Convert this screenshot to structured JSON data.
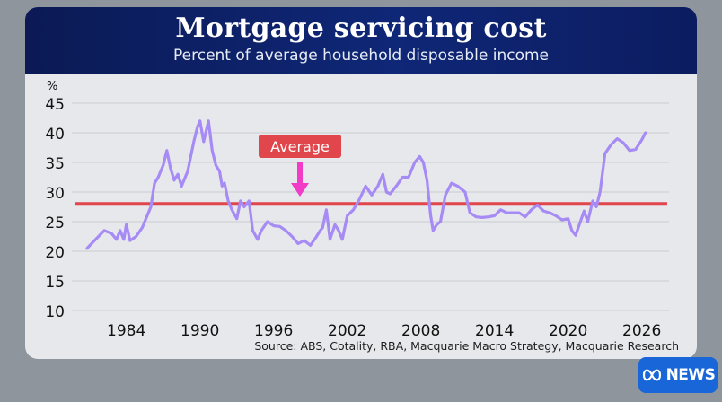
{
  "chart_data": {
    "type": "line",
    "title": "Mortgage servicing cost",
    "subtitle": "Percent of average household disposable income",
    "ylabel": "%",
    "ylim": [
      10,
      45
    ],
    "yticks": [
      10,
      15,
      20,
      25,
      30,
      35,
      40,
      45
    ],
    "xlim": [
      1980,
      2028
    ],
    "xticks": [
      1984,
      1990,
      1996,
      2002,
      2008,
      2014,
      2020,
      2026
    ],
    "average": {
      "label": "Average",
      "value": 28
    },
    "series": [
      {
        "x": [
          1980.8,
          1981.5,
          1982.2,
          1982.8,
          1983.2,
          1983.5,
          1983.8,
          1984.0,
          1984.3,
          1984.8,
          1985.3,
          1986.0,
          1986.3,
          1986.6,
          1987.0,
          1987.3,
          1987.6,
          1987.9,
          1988.2,
          1988.5,
          1989.0,
          1989.5,
          1989.8,
          1990.0,
          1990.3,
          1990.7,
          1991.0,
          1991.3,
          1991.6,
          1991.8,
          1992.0,
          1992.3,
          1992.6,
          1993.0,
          1993.3,
          1993.6,
          1994.0,
          1994.3,
          1994.7,
          1995.0,
          1995.5,
          1996.0,
          1996.5,
          1997.0,
          1997.5,
          1998.0,
          1998.5,
          1999.0,
          1999.5,
          1999.8,
          2000.0,
          2000.3,
          2000.6,
          2001.0,
          2001.3,
          2001.6,
          2002.0,
          2002.5,
          2003.0,
          2003.5,
          2004.0,
          2004.5,
          2004.9,
          2005.2,
          2005.5,
          2006.0,
          2006.5,
          2007.0,
          2007.5,
          2007.9,
          2008.2,
          2008.5,
          2008.8,
          2009.0,
          2009.3,
          2009.6,
          2010.0,
          2010.5,
          2011.0,
          2011.3,
          2011.6,
          2012.0,
          2012.5,
          2013.0,
          2013.5,
          2014.0,
          2014.5,
          2015.0,
          2015.5,
          2016.0,
          2016.5,
          2017.0,
          2017.5,
          2018.0,
          2018.5,
          2019.0,
          2019.5,
          2020.0,
          2020.3,
          2020.6,
          2021.0,
          2021.3,
          2021.6,
          2022.0,
          2022.3,
          2022.6,
          2023.0,
          2023.5,
          2024.0,
          2024.5,
          2025.0,
          2025.5,
          2026.0,
          2026.3
        ],
        "y": [
          20.5,
          22,
          23.5,
          23,
          22,
          23.5,
          22,
          24.5,
          21.8,
          22.5,
          24,
          27.5,
          31.5,
          32.5,
          34.5,
          37,
          34,
          32,
          33,
          31,
          33.5,
          38.5,
          41,
          42,
          38.5,
          42,
          37,
          34.5,
          33.5,
          31,
          31.5,
          28.5,
          27,
          25.5,
          28.5,
          27.5,
          28.5,
          23.5,
          22,
          23.5,
          25,
          24.3,
          24.2,
          23.5,
          22.5,
          21.3,
          21.8,
          21,
          22.5,
          23.5,
          24,
          27,
          22,
          24.5,
          23.5,
          22,
          26,
          27,
          28.8,
          31,
          29.5,
          31,
          33,
          30,
          29.7,
          31,
          32.5,
          32.5,
          35,
          36,
          35,
          32,
          26,
          23.5,
          24.5,
          25,
          29.5,
          31.5,
          31,
          30.5,
          30,
          26.5,
          25.8,
          25.7,
          25.8,
          26,
          27,
          26.5,
          26.5,
          26.5,
          25.8,
          27,
          27.8,
          26.8,
          26.5,
          26,
          25.3,
          25.5,
          23.5,
          22.7,
          25,
          26.8,
          25,
          28.5,
          27.5,
          30,
          36.5,
          38,
          39,
          38.3,
          37,
          37.2,
          38.8,
          40
        ]
      }
    ]
  },
  "source_text": "Source: ABS, Cotality, RBA, Macquarie Macro Strategy, Macquarie Research",
  "logo_text": "NEWS",
  "colors": {
    "series": "#a78bf5",
    "average_line": "#e0464b",
    "average_label_bg": "#e0464b",
    "arrow": "#f03cc6",
    "header": "#0f2777",
    "logo": "#1866d8"
  }
}
